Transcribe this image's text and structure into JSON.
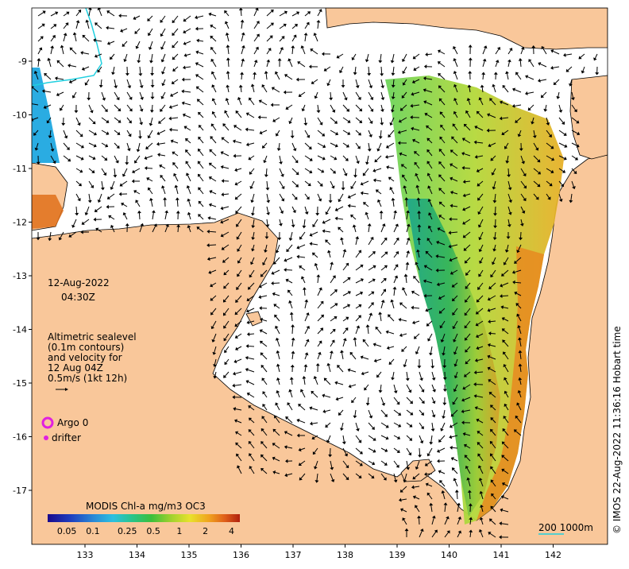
{
  "date_label": "12-Aug-2022",
  "time_label": "04:30Z",
  "legend": {
    "line1": "Altimetric sealevel",
    "line2": "(0.1m contours)",
    "line3": "and velocity for",
    "line4": "12 Aug 04Z",
    "line5": "0.5m/s (1kt 12h)"
  },
  "argo_label": "Argo 0",
  "drifter_label": "drifter",
  "colorbar": {
    "title": "MODIS Chl-a mg/m3 OC3",
    "ticks": [
      "0.05",
      "0.1",
      "0.25",
      "0.5",
      "1",
      "2",
      "4"
    ],
    "colors": [
      "#1a0a8c",
      "#1f3fbf",
      "#2a8ad6",
      "#2cc0e0",
      "#29c48a",
      "#3cbf3c",
      "#9ed12e",
      "#e8e22c",
      "#f0a21e",
      "#e0601a",
      "#b0200e"
    ]
  },
  "x_axis_ticks": [
    "133",
    "134",
    "135",
    "136",
    "137",
    "138",
    "139",
    "140",
    "141",
    "142"
  ],
  "y_axis_ticks": [
    "9",
    "10",
    "11",
    "12",
    "13",
    "14",
    "15",
    "16",
    "17"
  ],
  "scale_bar_label": "200  1000m",
  "credit": "© IMOS 22-Aug-2022 11:36:16 Hobart time",
  "colors": {
    "land": "#f9c79a",
    "ocean": "#ffffff",
    "argo": "#e020e0",
    "contour": "#20d0e0"
  }
}
